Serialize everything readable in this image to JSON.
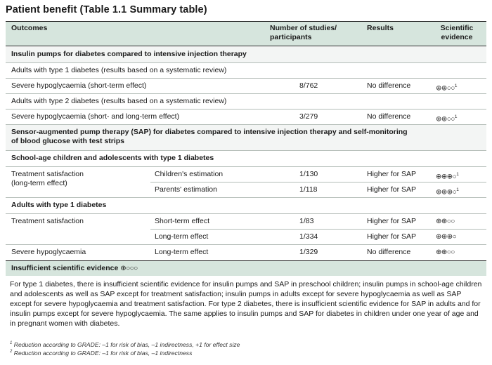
{
  "title": "Patient benefit (Table 1.1 Summary table)",
  "header": {
    "outcomes": "Outcomes",
    "studies_line1": "Number of studies/",
    "studies_line2": "participants",
    "results": "Results",
    "evidence_line1": "Scientific",
    "evidence_line2": "evidence"
  },
  "sections": {
    "pumps": "Insulin pumps for diabetes compared to intensive injection therapy",
    "type1_adults": "Adults with type 1 diabetes (results based on a systematic review)",
    "type2_adults": "Adults with type 2 diabetes (results based on a systematic review)",
    "sap_line1": "Sensor-augmented pump therapy (SAP) for diabetes compared to intensive injection therapy and self-monitoring",
    "sap_line2": "of blood glucose with test strips",
    "children": "School-age children and adolescents with type 1 diabetes",
    "adults_t1": "Adults with type 1 diabetes",
    "insufficient": "Insufficient scientific evidence",
    "insufficient_symbol": "⊕○○○"
  },
  "rows": {
    "r1": {
      "outcome": "Severe hypoglycaemia (short-term effect)",
      "studies": "8/762",
      "result": "No difference",
      "evidence": "⊕⊕○○",
      "note": "1"
    },
    "r2": {
      "outcome": "Severe hypoglycaemia (short- and long-term effect)",
      "studies": "3/279",
      "result": "No difference",
      "evidence": "⊕⊕○○",
      "note": "1"
    },
    "r3": {
      "outcome_line1": "Treatment satisfaction",
      "outcome_line2": "(long-term effect)",
      "sub": "Children's estimation",
      "studies": "1/130",
      "result": "Higher for SAP",
      "evidence": "⊕⊕⊕○",
      "note": "1"
    },
    "r4": {
      "sub": "Parents' estimation",
      "studies": "1/118",
      "result": "Higher for SAP",
      "evidence": "⊕⊕⊕○",
      "note": "1"
    },
    "r5": {
      "outcome": "Treatment satisfaction",
      "sub": "Short-term effect",
      "studies": "1/83",
      "result": "Higher for SAP",
      "evidence": "⊕⊕○○"
    },
    "r6": {
      "sub": "Long-term effect",
      "studies": "1/334",
      "result": "Higher for SAP",
      "evidence": "⊕⊕⊕○"
    },
    "r7": {
      "outcome": "Severe hypoglycaemia",
      "sub": "Long-term effect",
      "studies": "1/329",
      "result": "No difference",
      "evidence": "⊕⊕○○"
    }
  },
  "paragraph": "For type 1 diabetes, there is insufficient scientific evidence for insulin pumps and SAP in preschool children; insulin pumps in school-age children and adolescents as well as SAP except for treatment satisfaction; insulin pumps in adults except for severe hypoglycaemia as well as SAP except for severe hypoglycaemia and treatment satisfaction. For type 2 diabetes, there is insufficient scientific evidence for SAP in adults and for insulin pumps except for severe hypoglycaemia. The same applies to insulin pumps and SAP for diabetes in children under one year of age and in pregnant women with diabetes.",
  "footnotes": {
    "f1_mark": "1",
    "f1": "Reduction according to GRADE: –1 for risk of bias, –1 indirectness, +1 for effect size",
    "f2_mark": "2",
    "f2": "Reduction according to GRADE: –1 for risk of bias, –1 indirectness"
  }
}
